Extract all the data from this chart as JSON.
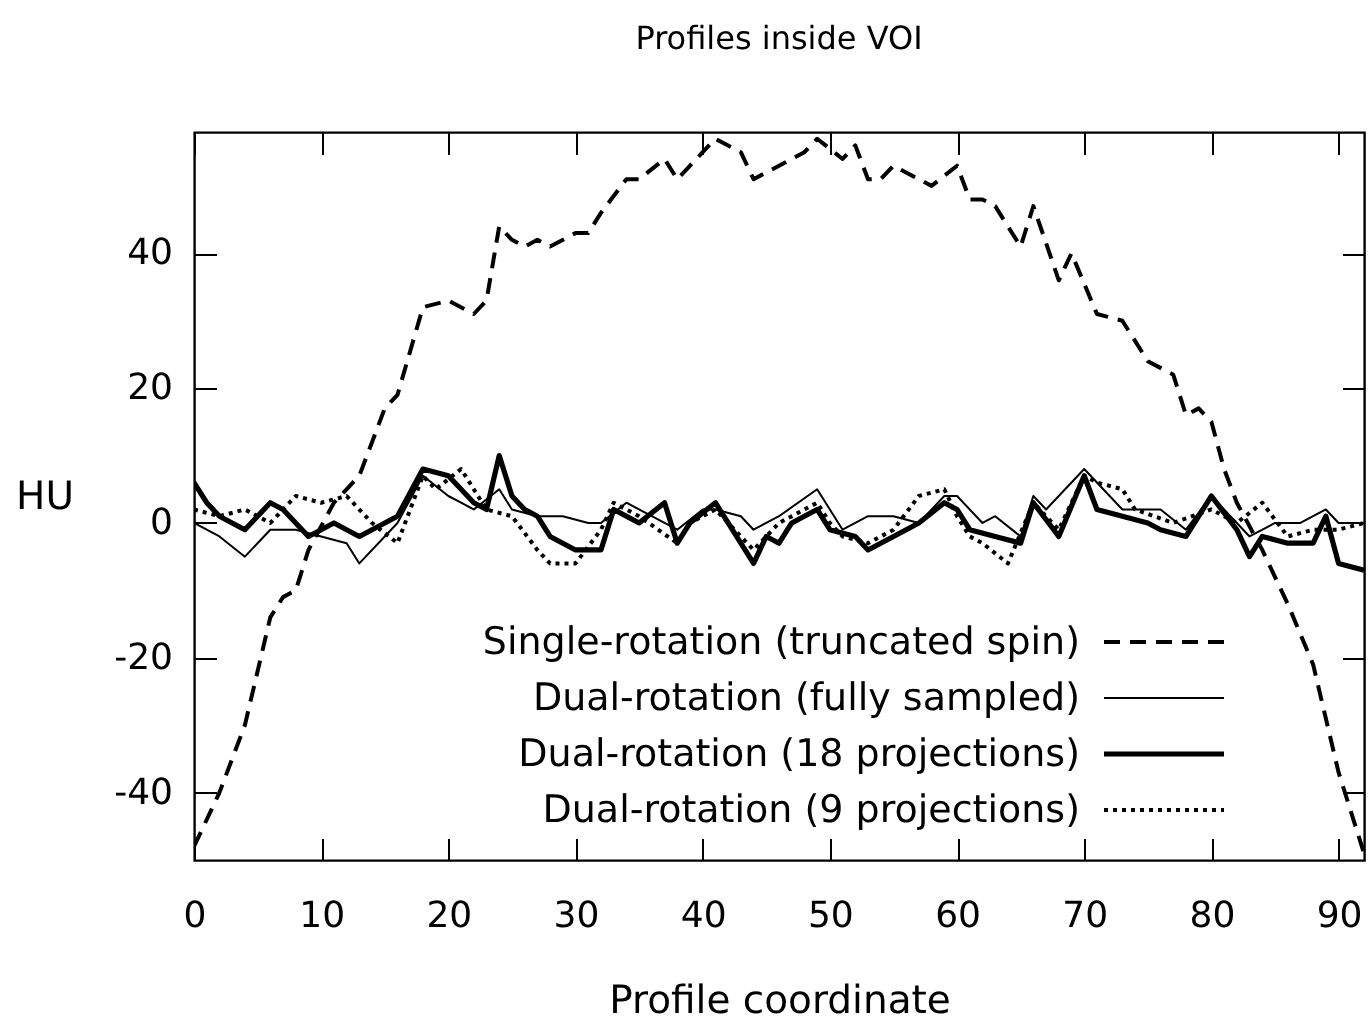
{
  "chart_data": {
    "type": "line",
    "title": "Profiles inside VOI",
    "xlabel": "Profile coordinate",
    "ylabel": "HU",
    "xlim": [
      0,
      92
    ],
    "ylim": [
      -50,
      58
    ],
    "xticks": [
      0,
      10,
      20,
      30,
      40,
      50,
      60,
      70,
      80,
      90
    ],
    "yticks": [
      -40,
      -20,
      0,
      20,
      40
    ],
    "legend": "bottom right",
    "series": [
      {
        "name": "Single-rotation (truncated spin)",
        "color": "#000000",
        "line_style": "dashed",
        "x": [
          0,
          2,
          4,
          6,
          7,
          8,
          9,
          11,
          12,
          13,
          15,
          16,
          18,
          20,
          22,
          23,
          24,
          25,
          26,
          27,
          28,
          30,
          31,
          32,
          34,
          35,
          37,
          38,
          40,
          41,
          42,
          43,
          44,
          45,
          47,
          48,
          49,
          51,
          52,
          53,
          54,
          55,
          57,
          58,
          60,
          61,
          62,
          63,
          65,
          66,
          68,
          69,
          71,
          73,
          75,
          77,
          78,
          79,
          80,
          81,
          82,
          84,
          86,
          88,
          90,
          92
        ],
        "values": [
          -48,
          -40,
          -30,
          -14,
          -11,
          -10,
          -4,
          3,
          5,
          7,
          17,
          19,
          32,
          33,
          31,
          33,
          44,
          42,
          41,
          42,
          41,
          43,
          43,
          46,
          51,
          51,
          54,
          51,
          55,
          57,
          56,
          55,
          51,
          52,
          54,
          55,
          57,
          54,
          56,
          51,
          51,
          53,
          51,
          50,
          53,
          48,
          48,
          47,
          41,
          47,
          36,
          40,
          31,
          30,
          24,
          22,
          16,
          17,
          15,
          8,
          3,
          -4,
          -12,
          -21,
          -37,
          -49
        ]
      },
      {
        "name": "Dual-rotation (fully sampled)",
        "color": "#000000",
        "line_style": "solid",
        "x": [
          0,
          2,
          4,
          6,
          8,
          10,
          12,
          13,
          15,
          16,
          18,
          20,
          21,
          22,
          24,
          25,
          27,
          29,
          31,
          32,
          34,
          36,
          38,
          40,
          41,
          43,
          44,
          46,
          49,
          51,
          53,
          55,
          57,
          59,
          60,
          62,
          63,
          65,
          66,
          67,
          70,
          72,
          73,
          76,
          78,
          80,
          82,
          83,
          85,
          87,
          89,
          90,
          92
        ],
        "values": [
          0,
          -2,
          -5,
          -1,
          -1,
          -2,
          -3,
          -6,
          -2,
          0,
          7,
          4,
          3,
          2,
          5,
          2,
          1,
          1,
          0,
          0,
          3,
          1,
          -1,
          2,
          2,
          1,
          -1,
          1,
          5,
          -1,
          1,
          1,
          0,
          4,
          4,
          0,
          1,
          -2,
          4,
          2,
          8,
          4,
          2,
          2,
          -1,
          4,
          0,
          -2,
          0,
          0,
          2,
          0,
          0
        ]
      },
      {
        "name": "Dual-rotation (18 projections)",
        "color": "#000000",
        "line_style": "solid",
        "x": [
          0,
          1,
          2,
          3,
          4,
          5,
          6,
          7,
          8,
          9,
          10,
          11,
          12,
          13,
          14,
          16,
          18,
          20,
          22,
          23,
          24,
          25,
          26,
          27,
          28,
          30,
          32,
          33,
          35,
          37,
          38,
          39,
          41,
          42,
          44,
          45,
          46,
          47,
          49,
          50,
          52,
          53,
          55,
          57,
          59,
          60,
          61,
          63,
          65,
          66,
          68,
          70,
          71,
          73,
          75,
          76,
          78,
          80,
          82,
          83,
          84,
          86,
          88,
          89,
          90,
          92
        ],
        "values": [
          6,
          3,
          1,
          0,
          -1,
          1,
          3,
          2,
          0,
          -2,
          -1,
          0,
          -1,
          -2,
          -1,
          1,
          8,
          7,
          3,
          2,
          10,
          4,
          2,
          1,
          -2,
          -4,
          -4,
          2,
          0,
          3,
          -3,
          0,
          3,
          0,
          -6,
          -2,
          -3,
          0,
          2,
          -1,
          -2,
          -4,
          -2,
          0,
          3,
          2,
          -1,
          -2,
          -3,
          3,
          -2,
          7,
          2,
          1,
          0,
          -1,
          -2,
          4,
          -1,
          -5,
          -2,
          -3,
          -3,
          1,
          -6,
          -7
        ]
      },
      {
        "name": "Dual-rotation (9 projections)",
        "color": "#000000",
        "line_style": "dotted",
        "x": [
          0,
          2,
          4,
          6,
          8,
          10,
          12,
          14,
          16,
          18,
          19,
          21,
          23,
          25,
          27,
          28,
          30,
          32,
          33,
          35,
          38,
          39,
          41,
          42,
          44,
          46,
          49,
          50,
          51,
          53,
          55,
          57,
          59,
          60,
          61,
          62,
          64,
          66,
          68,
          70,
          71,
          73,
          74,
          77,
          80,
          82,
          84,
          86,
          88,
          90,
          92
        ],
        "values": [
          2,
          1,
          2,
          0,
          4,
          3,
          4,
          0,
          -3,
          7,
          5,
          8,
          2,
          1,
          -4,
          -6,
          -6,
          -1,
          3,
          1,
          -3,
          0,
          2,
          0,
          -4,
          0,
          3,
          0,
          -2,
          -3,
          -1,
          4,
          5,
          1,
          -2,
          -3,
          -6,
          3,
          -1,
          7,
          6,
          5,
          2,
          0,
          2,
          0,
          3,
          -2,
          -1,
          -1,
          0
        ]
      }
    ]
  }
}
